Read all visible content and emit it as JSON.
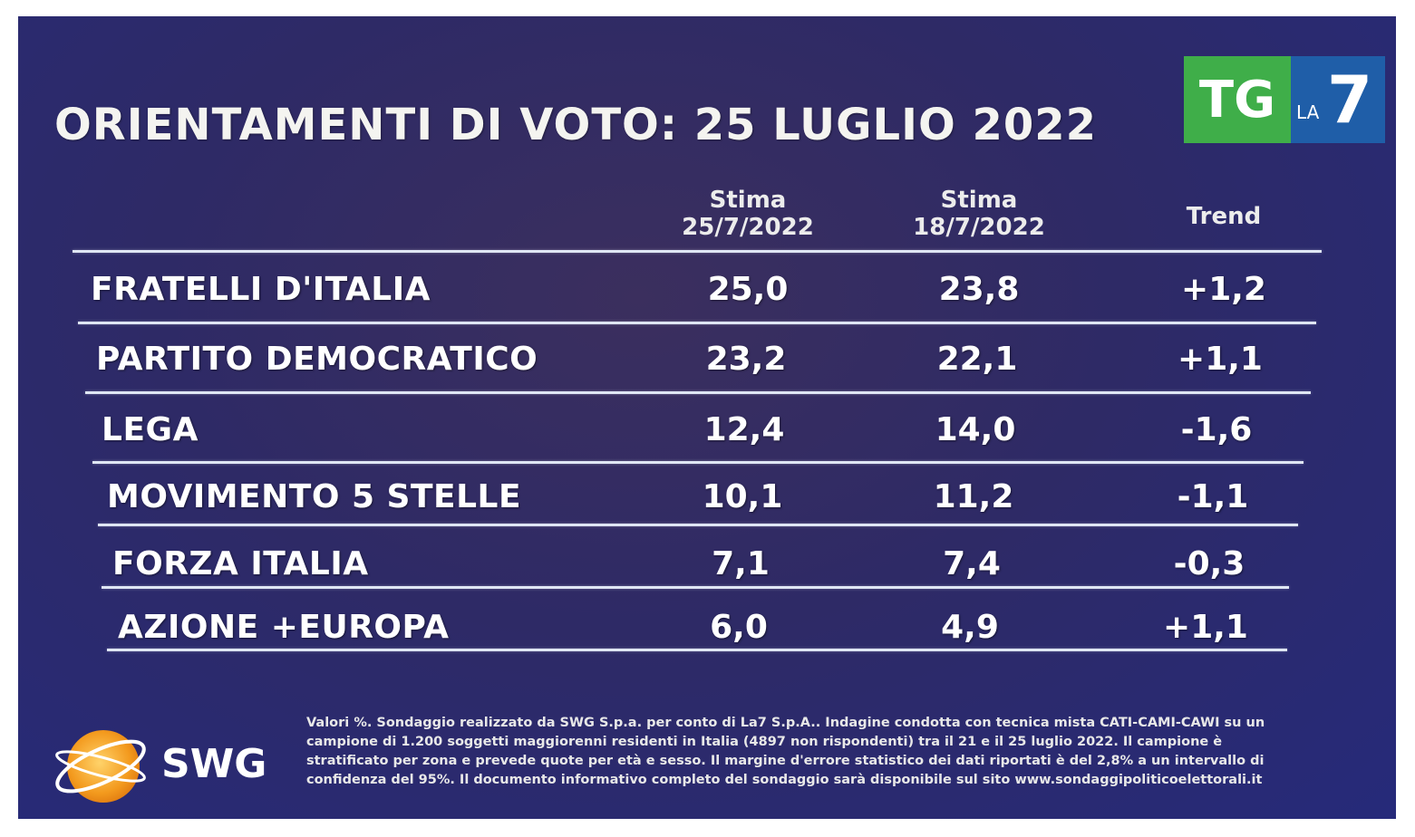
{
  "title": "ORIENTAMENTI DI VOTO: 25 LUGLIO 2022",
  "logo": {
    "tg": "TG",
    "la": "LA",
    "seven": "7"
  },
  "colors": {
    "background": "#2a2a70",
    "rule": "#dfe6f4",
    "tg_green": "#3fae49",
    "la7_blue": "#1f5ea8",
    "swg_orange": "#f39a1e"
  },
  "chart_data": {
    "type": "table",
    "columns": [
      {
        "line1": "Stima",
        "line2": "25/7/2022"
      },
      {
        "line1": "Stima",
        "line2": "18/7/2022"
      },
      {
        "line1": "Trend",
        "line2": ""
      }
    ],
    "rows": [
      {
        "party": "FRATELLI D'ITALIA",
        "current": "25,0",
        "previous": "23,8",
        "trend": "+1,2"
      },
      {
        "party": "PARTITO DEMOCRATICO",
        "current": "23,2",
        "previous": "22,1",
        "trend": "+1,1"
      },
      {
        "party": "LEGA",
        "current": "12,4",
        "previous": "14,0",
        "trend": "-1,6"
      },
      {
        "party": "MOVIMENTO 5 STELLE",
        "current": "10,1",
        "previous": "11,2",
        "trend": "-1,1"
      },
      {
        "party": "FORZA ITALIA",
        "current": "7,1",
        "previous": "7,4",
        "trend": "-0,3"
      },
      {
        "party": "AZIONE +EUROPA",
        "current": "6,0",
        "previous": "4,9",
        "trend": "+1,1"
      }
    ]
  },
  "footer": {
    "brand": "SWG",
    "note": "Valori %. Sondaggio realizzato da SWG S.p.a. per conto di La7 S.p.A.. Indagine condotta con tecnica mista CATI-CAMI-CAWI su un campione di 1.200 soggetti maggiorenni residenti in Italia (4897 non rispondenti) tra il 21 e il 25 luglio 2022. Il campione è stratificato per zona e prevede quote per età e sesso. Il margine d'errore statistico dei dati riportati è del 2,8% a un intervallo di confidenza del 95%. Il documento informativo completo del sondaggio sarà disponibile sul sito www.sondaggipoliticoelettorali.it"
  }
}
